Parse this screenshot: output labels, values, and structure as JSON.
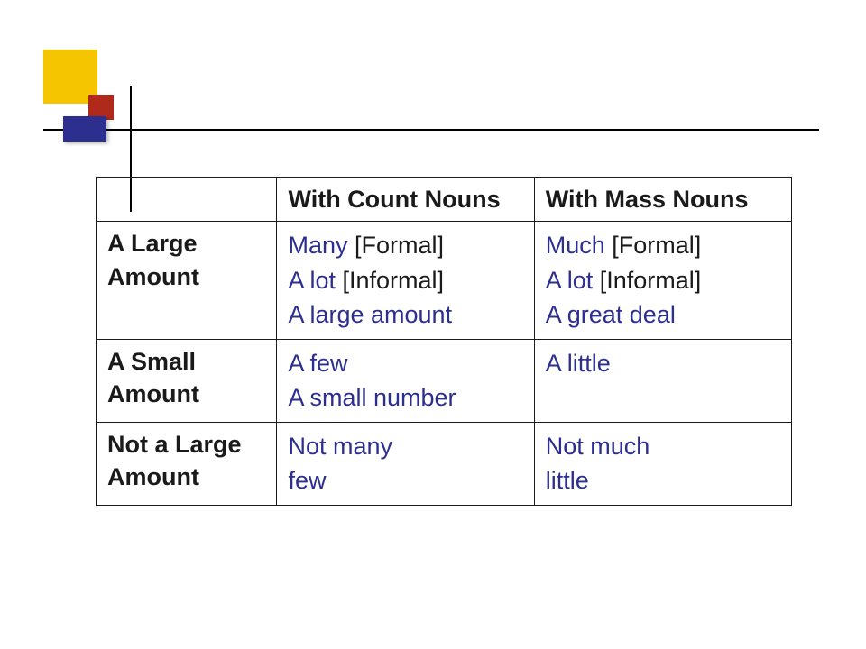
{
  "headers": {
    "count": "With Count Nouns",
    "mass": "With Mass Nouns"
  },
  "rows": {
    "large": {
      "label": "A Large Amount",
      "count": [
        {
          "blue": "Many",
          "rest": " [Formal]"
        },
        {
          "blue": "A lot",
          "rest": " [Informal]"
        },
        {
          "blue": "A large amount",
          "rest": ""
        }
      ],
      "mass": [
        {
          "blue": "Much",
          "rest": " [Formal]"
        },
        {
          "blue": "A lot",
          "rest": " [Informal]"
        },
        {
          "blue": "A great deal",
          "rest": ""
        }
      ]
    },
    "small": {
      "label": "A Small Amount",
      "count": [
        {
          "blue": "A few",
          "rest": ""
        },
        {
          "blue": "A small number",
          "rest": ""
        }
      ],
      "mass": [
        {
          "blue": "A little",
          "rest": ""
        }
      ]
    },
    "notlarge": {
      "label": "Not a Large Amount",
      "count": [
        {
          "blue": "Not many",
          "rest": ""
        },
        {
          "blue": "few",
          "rest": ""
        }
      ],
      "mass": [
        {
          "blue": "Not much",
          "rest": ""
        },
        {
          "blue": "little",
          "rest": ""
        }
      ]
    }
  },
  "colors": {
    "blue_text": "#2d2f8f",
    "border": "#1a1a1a",
    "background": "#ffffff"
  }
}
